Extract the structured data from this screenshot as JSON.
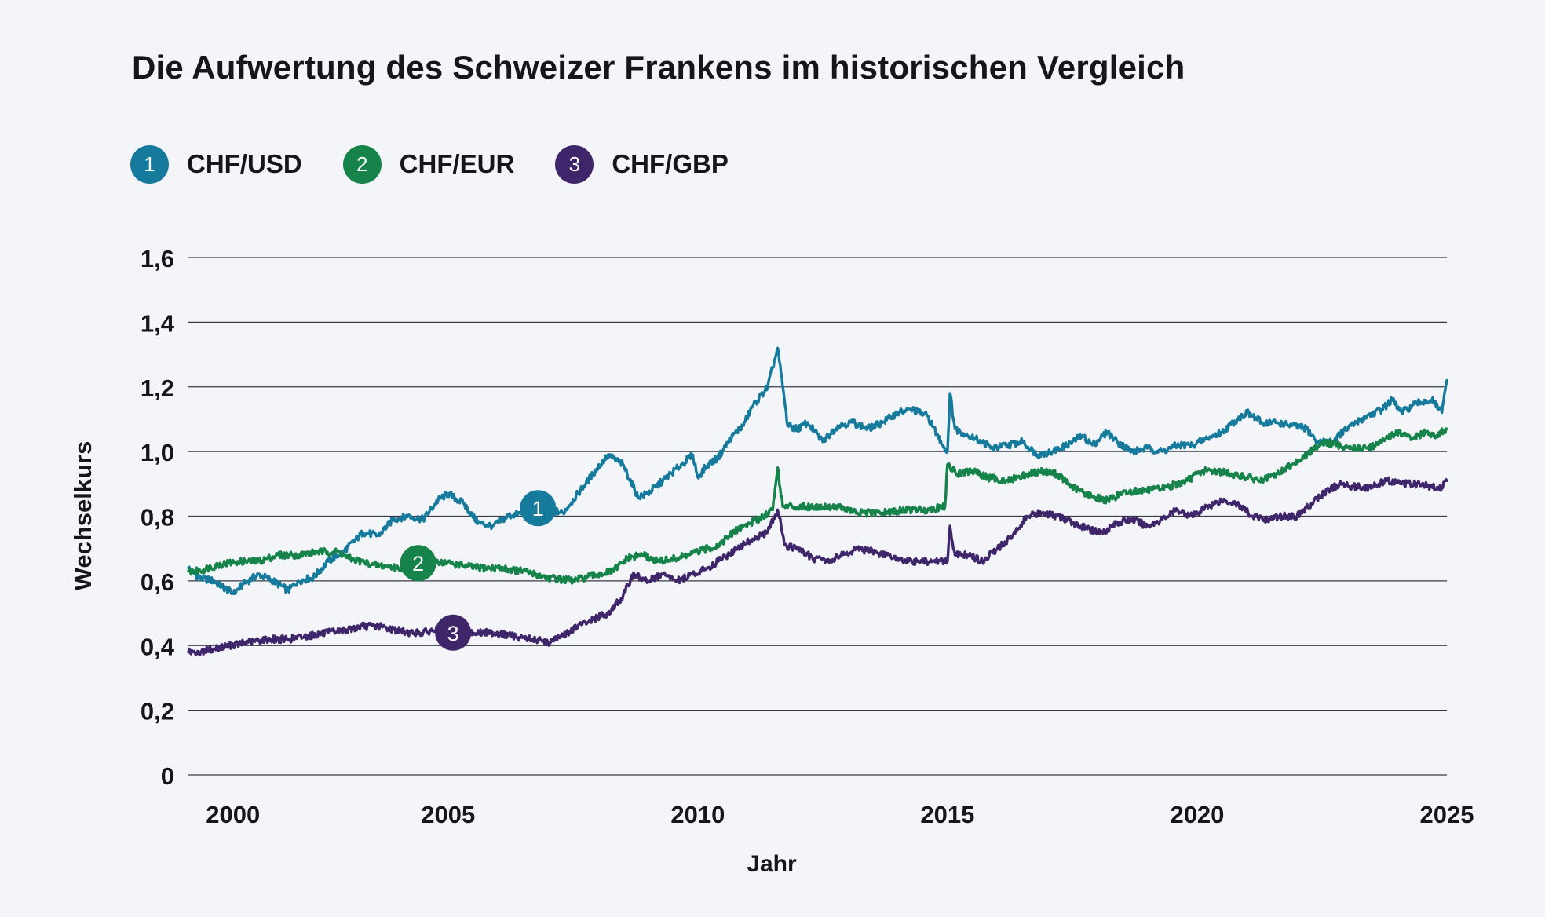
{
  "title": "Die Aufwertung des Schweizer Frankens im historischen Vergleich",
  "legend": [
    {
      "marker": "1",
      "label": "CHF/USD",
      "color": "#157a9b"
    },
    {
      "marker": "2",
      "label": "CHF/EUR",
      "color": "#16834a"
    },
    {
      "marker": "3",
      "label": "CHF/GBP",
      "color": "#3f2569"
    }
  ],
  "chart_data": {
    "type": "line",
    "title": "Die Aufwertung des Schweizer Frankens im historischen Vergleich",
    "xlabel": "Jahr",
    "ylabel": "Wechselkurs",
    "xlim": [
      1999.8,
      2025
    ],
    "ylim": [
      0,
      1.6
    ],
    "x_ticks": [
      2000,
      2005,
      2010,
      2015,
      2020,
      2025
    ],
    "x_tick_labels": [
      "2000",
      "2005",
      "2010",
      "2015",
      "2020",
      "2025"
    ],
    "y_ticks": [
      0,
      0.2,
      0.4,
      0.6,
      0.8,
      1.0,
      1.2,
      1.4,
      1.6
    ],
    "y_tick_labels": [
      "0",
      "0,2",
      "0,4",
      "0,6",
      "0,8",
      "1,0",
      "1,2",
      "1,4",
      "1,6"
    ],
    "grid": "horizontal",
    "legend_position": "top-left",
    "series": [
      {
        "name": "CHF/USD",
        "marker": "1",
        "color": "#157a9b",
        "marker_at": {
          "x": 2006.8,
          "y": 0.825
        },
        "points": [
          [
            1999.8,
            0.64
          ],
          [
            2000.0,
            0.61
          ],
          [
            2000.3,
            0.6
          ],
          [
            2000.5,
            0.58
          ],
          [
            2000.7,
            0.56
          ],
          [
            2000.9,
            0.59
          ],
          [
            2001.2,
            0.62
          ],
          [
            2001.5,
            0.6
          ],
          [
            2001.8,
            0.57
          ],
          [
            2002.0,
            0.6
          ],
          [
            2002.3,
            0.61
          ],
          [
            2002.6,
            0.66
          ],
          [
            2002.9,
            0.69
          ],
          [
            2003.1,
            0.72
          ],
          [
            2003.3,
            0.75
          ],
          [
            2003.6,
            0.74
          ],
          [
            2003.9,
            0.79
          ],
          [
            2004.2,
            0.8
          ],
          [
            2004.5,
            0.79
          ],
          [
            2004.8,
            0.85
          ],
          [
            2005.0,
            0.87
          ],
          [
            2005.3,
            0.84
          ],
          [
            2005.6,
            0.78
          ],
          [
            2005.9,
            0.77
          ],
          [
            2006.2,
            0.8
          ],
          [
            2006.5,
            0.81
          ],
          [
            2006.8,
            0.8
          ],
          [
            2007.0,
            0.82
          ],
          [
            2007.3,
            0.81
          ],
          [
            2007.6,
            0.87
          ],
          [
            2007.9,
            0.93
          ],
          [
            2008.2,
            0.99
          ],
          [
            2008.5,
            0.96
          ],
          [
            2008.8,
            0.86
          ],
          [
            2009.0,
            0.87
          ],
          [
            2009.3,
            0.91
          ],
          [
            2009.6,
            0.95
          ],
          [
            2009.9,
            0.99
          ],
          [
            2010.0,
            0.92
          ],
          [
            2010.2,
            0.96
          ],
          [
            2010.4,
            0.98
          ],
          [
            2010.7,
            1.05
          ],
          [
            2010.9,
            1.08
          ],
          [
            2011.1,
            1.14
          ],
          [
            2011.4,
            1.2
          ],
          [
            2011.6,
            1.32
          ],
          [
            2011.7,
            1.2
          ],
          [
            2011.8,
            1.08
          ],
          [
            2012.0,
            1.07
          ],
          [
            2012.2,
            1.09
          ],
          [
            2012.5,
            1.03
          ],
          [
            2012.8,
            1.08
          ],
          [
            2013.1,
            1.09
          ],
          [
            2013.4,
            1.07
          ],
          [
            2013.7,
            1.09
          ],
          [
            2014.0,
            1.12
          ],
          [
            2014.3,
            1.13
          ],
          [
            2014.6,
            1.11
          ],
          [
            2014.9,
            1.02
          ],
          [
            2015.0,
            1.0
          ],
          [
            2015.05,
            1.18
          ],
          [
            2015.15,
            1.07
          ],
          [
            2015.4,
            1.05
          ],
          [
            2015.7,
            1.03
          ],
          [
            2015.9,
            1.01
          ],
          [
            2016.2,
            1.02
          ],
          [
            2016.5,
            1.03
          ],
          [
            2016.8,
            0.99
          ],
          [
            2017.1,
            1.0
          ],
          [
            2017.4,
            1.02
          ],
          [
            2017.7,
            1.05
          ],
          [
            2017.9,
            1.02
          ],
          [
            2018.2,
            1.06
          ],
          [
            2018.4,
            1.03
          ],
          [
            2018.7,
            1.0
          ],
          [
            2019.0,
            1.01
          ],
          [
            2019.3,
            1.0
          ],
          [
            2019.6,
            1.02
          ],
          [
            2019.9,
            1.02
          ],
          [
            2020.2,
            1.04
          ],
          [
            2020.5,
            1.06
          ],
          [
            2020.8,
            1.1
          ],
          [
            2021.0,
            1.12
          ],
          [
            2021.3,
            1.09
          ],
          [
            2021.6,
            1.09
          ],
          [
            2021.9,
            1.08
          ],
          [
            2022.2,
            1.07
          ],
          [
            2022.4,
            1.03
          ],
          [
            2022.7,
            1.03
          ],
          [
            2022.9,
            1.06
          ],
          [
            2023.2,
            1.09
          ],
          [
            2023.4,
            1.11
          ],
          [
            2023.7,
            1.13
          ],
          [
            2023.9,
            1.16
          ],
          [
            2024.1,
            1.12
          ],
          [
            2024.4,
            1.15
          ],
          [
            2024.7,
            1.16
          ],
          [
            2024.9,
            1.12
          ],
          [
            2025.0,
            1.22
          ]
        ]
      },
      {
        "name": "CHF/EUR",
        "marker": "2",
        "color": "#16834a",
        "marker_at": {
          "x": 2004.4,
          "y": 0.655
        },
        "points": [
          [
            1999.8,
            0.63
          ],
          [
            2000.0,
            0.63
          ],
          [
            2000.4,
            0.65
          ],
          [
            2000.8,
            0.66
          ],
          [
            2001.2,
            0.66
          ],
          [
            2001.6,
            0.68
          ],
          [
            2002.0,
            0.68
          ],
          [
            2002.4,
            0.69
          ],
          [
            2002.8,
            0.69
          ],
          [
            2003.0,
            0.67
          ],
          [
            2003.5,
            0.65
          ],
          [
            2004.0,
            0.64
          ],
          [
            2004.4,
            0.65
          ],
          [
            2004.8,
            0.66
          ],
          [
            2005.2,
            0.65
          ],
          [
            2005.6,
            0.64
          ],
          [
            2006.0,
            0.64
          ],
          [
            2006.5,
            0.63
          ],
          [
            2007.0,
            0.61
          ],
          [
            2007.5,
            0.6
          ],
          [
            2008.0,
            0.62
          ],
          [
            2008.3,
            0.63
          ],
          [
            2008.6,
            0.67
          ],
          [
            2008.9,
            0.68
          ],
          [
            2009.2,
            0.66
          ],
          [
            2009.6,
            0.67
          ],
          [
            2010.0,
            0.69
          ],
          [
            2010.4,
            0.71
          ],
          [
            2010.8,
            0.76
          ],
          [
            2011.2,
            0.79
          ],
          [
            2011.5,
            0.82
          ],
          [
            2011.6,
            0.95
          ],
          [
            2011.7,
            0.83
          ],
          [
            2011.9,
            0.83
          ],
          [
            2012.3,
            0.83
          ],
          [
            2012.8,
            0.83
          ],
          [
            2013.2,
            0.81
          ],
          [
            2013.7,
            0.81
          ],
          [
            2014.2,
            0.82
          ],
          [
            2014.6,
            0.82
          ],
          [
            2014.95,
            0.83
          ],
          [
            2015.0,
            0.96
          ],
          [
            2015.2,
            0.93
          ],
          [
            2015.5,
            0.94
          ],
          [
            2015.8,
            0.92
          ],
          [
            2016.2,
            0.91
          ],
          [
            2016.6,
            0.93
          ],
          [
            2016.9,
            0.94
          ],
          [
            2017.2,
            0.93
          ],
          [
            2017.5,
            0.89
          ],
          [
            2017.9,
            0.86
          ],
          [
            2018.2,
            0.85
          ],
          [
            2018.5,
            0.87
          ],
          [
            2018.8,
            0.88
          ],
          [
            2019.1,
            0.88
          ],
          [
            2019.4,
            0.89
          ],
          [
            2019.8,
            0.91
          ],
          [
            2020.1,
            0.94
          ],
          [
            2020.4,
            0.94
          ],
          [
            2020.7,
            0.93
          ],
          [
            2021.0,
            0.92
          ],
          [
            2021.3,
            0.91
          ],
          [
            2021.6,
            0.93
          ],
          [
            2021.9,
            0.96
          ],
          [
            2022.2,
            0.99
          ],
          [
            2022.5,
            1.03
          ],
          [
            2022.8,
            1.02
          ],
          [
            2023.1,
            1.01
          ],
          [
            2023.4,
            1.01
          ],
          [
            2023.7,
            1.03
          ],
          [
            2024.0,
            1.06
          ],
          [
            2024.3,
            1.04
          ],
          [
            2024.6,
            1.06
          ],
          [
            2024.8,
            1.05
          ],
          [
            2025.0,
            1.07
          ]
        ]
      },
      {
        "name": "CHF/GBP",
        "marker": "3",
        "color": "#3f2569",
        "marker_at": {
          "x": 2005.1,
          "y": 0.44
        },
        "points": [
          [
            1999.8,
            0.38
          ],
          [
            2000.0,
            0.38
          ],
          [
            2000.3,
            0.39
          ],
          [
            2000.6,
            0.4
          ],
          [
            2001.0,
            0.41
          ],
          [
            2001.4,
            0.42
          ],
          [
            2001.8,
            0.42
          ],
          [
            2002.2,
            0.43
          ],
          [
            2002.6,
            0.44
          ],
          [
            2003.0,
            0.45
          ],
          [
            2003.3,
            0.46
          ],
          [
            2003.6,
            0.46
          ],
          [
            2003.9,
            0.45
          ],
          [
            2004.2,
            0.44
          ],
          [
            2004.5,
            0.44
          ],
          [
            2004.8,
            0.45
          ],
          [
            2005.1,
            0.45
          ],
          [
            2005.5,
            0.44
          ],
          [
            2005.9,
            0.44
          ],
          [
            2006.3,
            0.43
          ],
          [
            2006.7,
            0.42
          ],
          [
            2007.0,
            0.41
          ],
          [
            2007.3,
            0.43
          ],
          [
            2007.6,
            0.46
          ],
          [
            2007.9,
            0.48
          ],
          [
            2008.2,
            0.5
          ],
          [
            2008.5,
            0.55
          ],
          [
            2008.7,
            0.62
          ],
          [
            2009.0,
            0.6
          ],
          [
            2009.3,
            0.62
          ],
          [
            2009.6,
            0.6
          ],
          [
            2009.9,
            0.62
          ],
          [
            2010.2,
            0.64
          ],
          [
            2010.5,
            0.67
          ],
          [
            2010.8,
            0.7
          ],
          [
            2011.1,
            0.73
          ],
          [
            2011.4,
            0.75
          ],
          [
            2011.6,
            0.82
          ],
          [
            2011.75,
            0.71
          ],
          [
            2012.0,
            0.7
          ],
          [
            2012.3,
            0.67
          ],
          [
            2012.6,
            0.66
          ],
          [
            2012.9,
            0.68
          ],
          [
            2013.2,
            0.7
          ],
          [
            2013.5,
            0.69
          ],
          [
            2013.8,
            0.68
          ],
          [
            2014.1,
            0.66
          ],
          [
            2014.4,
            0.66
          ],
          [
            2014.7,
            0.66
          ],
          [
            2015.0,
            0.66
          ],
          [
            2015.05,
            0.77
          ],
          [
            2015.15,
            0.68
          ],
          [
            2015.4,
            0.68
          ],
          [
            2015.7,
            0.66
          ],
          [
            2016.0,
            0.7
          ],
          [
            2016.3,
            0.74
          ],
          [
            2016.6,
            0.8
          ],
          [
            2016.9,
            0.81
          ],
          [
            2017.2,
            0.8
          ],
          [
            2017.5,
            0.78
          ],
          [
            2017.8,
            0.76
          ],
          [
            2018.1,
            0.75
          ],
          [
            2018.4,
            0.78
          ],
          [
            2018.7,
            0.79
          ],
          [
            2019.0,
            0.77
          ],
          [
            2019.3,
            0.79
          ],
          [
            2019.6,
            0.82
          ],
          [
            2019.9,
            0.8
          ],
          [
            2020.2,
            0.83
          ],
          [
            2020.5,
            0.85
          ],
          [
            2020.8,
            0.84
          ],
          [
            2021.1,
            0.8
          ],
          [
            2021.4,
            0.79
          ],
          [
            2021.7,
            0.8
          ],
          [
            2022.0,
            0.8
          ],
          [
            2022.3,
            0.84
          ],
          [
            2022.6,
            0.88
          ],
          [
            2022.9,
            0.9
          ],
          [
            2023.2,
            0.89
          ],
          [
            2023.5,
            0.89
          ],
          [
            2023.8,
            0.91
          ],
          [
            2024.1,
            0.9
          ],
          [
            2024.4,
            0.9
          ],
          [
            2024.7,
            0.89
          ],
          [
            2024.9,
            0.89
          ],
          [
            2025.0,
            0.91
          ]
        ]
      }
    ]
  }
}
